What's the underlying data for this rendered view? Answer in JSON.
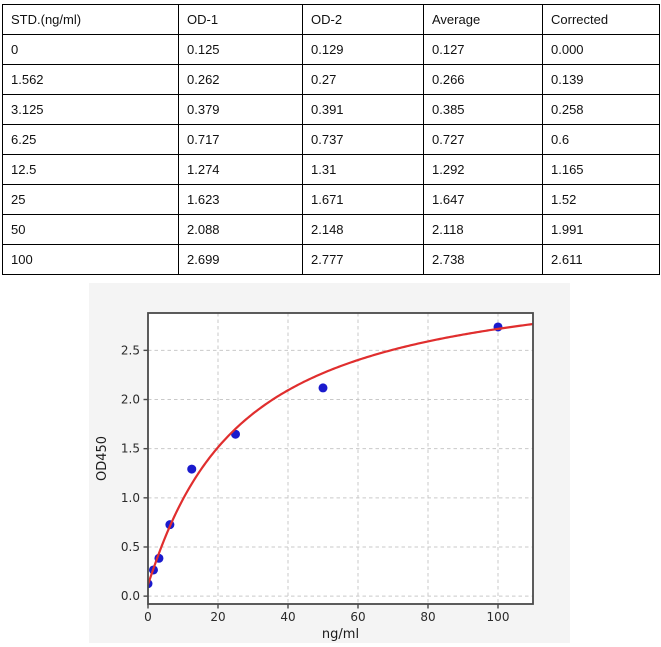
{
  "table": {
    "columns": [
      "STD.(ng/ml)",
      "OD-1",
      "OD-2",
      "Average",
      "Corrected"
    ],
    "rows": [
      [
        "0",
        "0.125",
        "0.129",
        "0.127",
        "0.000"
      ],
      [
        "1.562",
        "0.262",
        "0.27",
        "0.266",
        "0.139"
      ],
      [
        "3.125",
        "0.379",
        "0.391",
        "0.385",
        "0.258"
      ],
      [
        "6.25",
        "0.717",
        "0.737",
        "0.727",
        "0.6"
      ],
      [
        "12.5",
        "1.274",
        "1.31",
        "1.292",
        "1.165"
      ],
      [
        "25",
        "1.623",
        "1.671",
        "1.647",
        "1.52"
      ],
      [
        "50",
        "2.088",
        "2.148",
        "2.118",
        "1.991"
      ],
      [
        "100",
        "2.699",
        "2.777",
        "2.738",
        "2.611"
      ]
    ]
  },
  "chart_data": {
    "type": "scatter",
    "title": "",
    "xlabel": "ng/ml",
    "ylabel": "OD450",
    "xlim": [
      0,
      110
    ],
    "ylim": [
      -0.08,
      2.88
    ],
    "xtick_values": [
      0,
      20,
      40,
      60,
      80,
      100
    ],
    "xtick_labels": [
      "0",
      "20",
      "40",
      "60",
      "80",
      "100"
    ],
    "ytick_values": [
      0.0,
      0.5,
      1.0,
      1.5,
      2.0,
      2.5
    ],
    "ytick_labels": [
      "0.0",
      "0.5",
      "1.0",
      "1.5",
      "2.0",
      "2.5"
    ],
    "grid": true,
    "legend": "none",
    "points": {
      "x": [
        0,
        1.562,
        3.125,
        6.25,
        12.5,
        25,
        50,
        100
      ],
      "y": [
        0.127,
        0.266,
        0.385,
        0.727,
        1.292,
        1.647,
        2.118,
        2.738
      ]
    },
    "fit_curve": {
      "model": "4PL",
      "formula": "y = d + (a - d) / (1 + (x/c)^b)",
      "params": {
        "a": 0.12,
        "b": 1.05,
        "c": 26,
        "d": 3.35
      },
      "x_range": [
        0,
        110
      ]
    },
    "colors": {
      "point": "#1a1acd",
      "curve": "#e02e2e",
      "figure_bg": "#f4f4f4",
      "plot_bg": "#ffffff",
      "grid": "#c9c9c9",
      "frame": "#4a4a4a"
    }
  }
}
